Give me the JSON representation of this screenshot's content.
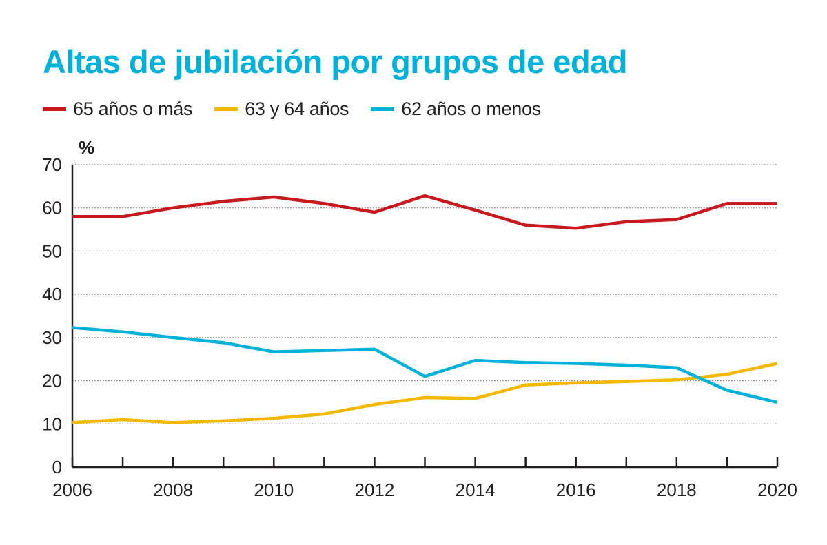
{
  "chart_data": {
    "type": "line",
    "title": "Altas de jubilación por grupos de edad",
    "ylabel": "%",
    "xlabel": "",
    "ylim": [
      0,
      70
    ],
    "xlim": [
      2006,
      2020
    ],
    "y_ticks": [
      "0",
      "10",
      "20",
      "30",
      "40",
      "50",
      "60",
      "70"
    ],
    "x_ticks": [
      "2006",
      "2008",
      "2010",
      "2012",
      "2014",
      "2016",
      "2018",
      "2020"
    ],
    "grid": "horizontal-dotted",
    "legend_position": "top-left",
    "series": [
      {
        "name": "65 años o más",
        "color": "#c8191e",
        "x": [
          2006,
          2007,
          2008,
          2009,
          2010,
          2011,
          2012,
          2013,
          2014,
          2015,
          2016,
          2017,
          2018,
          2019,
          2020
        ],
        "values": [
          58,
          58,
          60,
          61.5,
          62.5,
          61,
          59,
          62.8,
          59.5,
          56,
          55.3,
          56.8,
          57.3,
          61,
          61
        ]
      },
      {
        "name": "63 y 64 años",
        "color": "#f5b800",
        "x": [
          2006,
          2007,
          2008,
          2009,
          2010,
          2011,
          2012,
          2013,
          2014,
          2015,
          2016,
          2017,
          2018,
          2019,
          2020
        ],
        "values": [
          10.3,
          11,
          10.3,
          10.7,
          11.3,
          12.3,
          14.5,
          16.1,
          15.9,
          19,
          19.5,
          19.8,
          20.2,
          21.5,
          24
        ]
      },
      {
        "name": "62 años o menos",
        "color": "#00b2d9",
        "x": [
          2006,
          2007,
          2008,
          2009,
          2010,
          2011,
          2012,
          2013,
          2014,
          2015,
          2016,
          2017,
          2018,
          2019,
          2020
        ],
        "values": [
          32.3,
          31.3,
          30,
          28.8,
          26.7,
          27,
          27.3,
          21,
          24.7,
          24.2,
          24,
          23.6,
          23,
          17.8,
          15
        ]
      }
    ]
  }
}
